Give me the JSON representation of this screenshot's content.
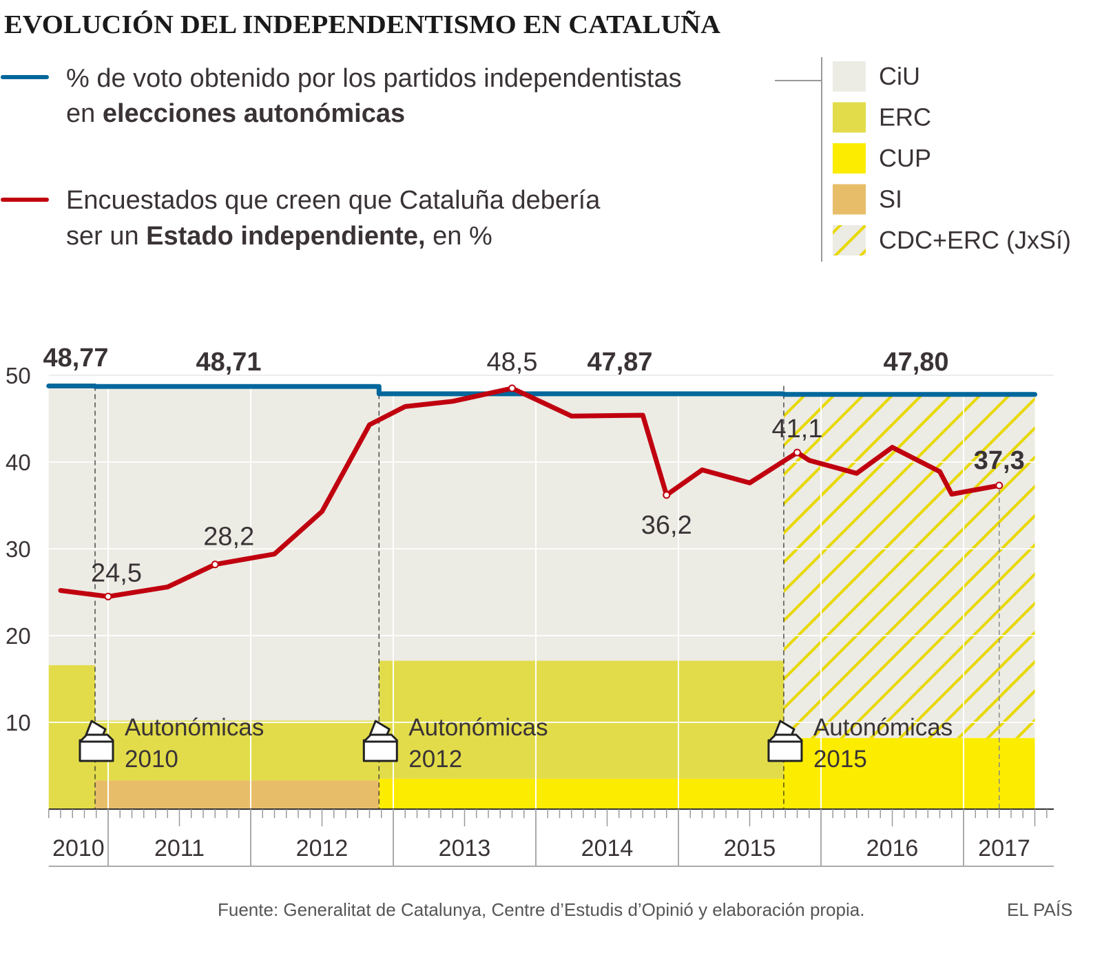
{
  "title": "EVOLUCIÓN DEL INDEPENDENTISMO EN CATALUÑA",
  "legend": {
    "blue": {
      "line1": "% de voto obtenido por los partidos independentistas",
      "line2_pre": "en ",
      "line2_bold": "elecciones autonómicas",
      "color": "#00679c"
    },
    "red": {
      "line1": "Encuestados que creen que Cataluña debería",
      "line2_pre": "ser un ",
      "line2_bold": "Estado independiente,",
      "line2_post": " en %",
      "color": "#c0000f"
    }
  },
  "parties": [
    {
      "name": "CiU",
      "color": "#ecebe4"
    },
    {
      "name": "ERC",
      "color": "#e2dc4a"
    },
    {
      "name": "CUP",
      "color": "#fcec00"
    },
    {
      "name": "SI",
      "color": "#e8bd6a"
    },
    {
      "name": "CDC+ERC (JxSí)",
      "color": "#ecebe4",
      "hatch": "#e8d800"
    }
  ],
  "chart_data": {
    "type": "line",
    "title": "EVOLUCIÓN DEL INDEPENDENTISMO EN CATALUÑA",
    "ylim": [
      0,
      50
    ],
    "yticks": [
      "10",
      "20",
      "30",
      "40",
      "50"
    ],
    "xlim": [
      "2010-08-01",
      "2017-09-01"
    ],
    "xticks": [
      "2010",
      "2011",
      "2012",
      "2013",
      "2014",
      "2015",
      "2016",
      "2017"
    ],
    "grid": true,
    "vote_periods": [
      {
        "start": "2010-08-01",
        "end": "2010-11-28",
        "total": 48.77,
        "label": "48,77",
        "stack": [
          {
            "party": "ERC",
            "value": 16.6
          },
          {
            "party": "CiU",
            "value": 32.17
          }
        ]
      },
      {
        "start": "2010-11-28",
        "end": "2012-11-25",
        "total": 48.71,
        "label": "48,71",
        "stack": [
          {
            "party": "SI",
            "value": 3.3
          },
          {
            "party": "ERC",
            "value": 6.9
          },
          {
            "party": "CiU",
            "value": 38.51
          }
        ]
      },
      {
        "start": "2012-11-25",
        "end": "2015-09-27",
        "total": 47.87,
        "label": "47,87",
        "stack": [
          {
            "party": "CUP",
            "value": 3.5
          },
          {
            "party": "ERC",
            "value": 13.6
          },
          {
            "party": "CiU",
            "value": 30.77
          }
        ]
      },
      {
        "start": "2015-09-27",
        "end": "2017-07-01",
        "total": 47.8,
        "label": "47,80",
        "stack": [
          {
            "party": "CUP",
            "value": 8.2
          },
          {
            "party": "CDC+ERC (JxSí)",
            "value": 39.6
          }
        ]
      }
    ],
    "elections": [
      {
        "date": "2010-11-28",
        "label1": "Autonómicas",
        "label2": "2010"
      },
      {
        "date": "2012-11-25",
        "label1": "Autonómicas",
        "label2": "2012"
      },
      {
        "date": "2015-09-27",
        "label1": "Autonómicas",
        "label2": "2015"
      }
    ],
    "survey": [
      {
        "date": "2010-09-01",
        "value": 25.2
      },
      {
        "date": "2011-01-01",
        "value": 24.5,
        "label": "24,5"
      },
      {
        "date": "2011-06-01",
        "value": 25.6
      },
      {
        "date": "2011-10-01",
        "value": 28.2,
        "label": "28,2"
      },
      {
        "date": "2012-03-01",
        "value": 29.4
      },
      {
        "date": "2012-07-01",
        "value": 34.3
      },
      {
        "date": "2012-11-01",
        "value": 44.3
      },
      {
        "date": "2013-02-01",
        "value": 46.4
      },
      {
        "date": "2013-06-01",
        "value": 47.0
      },
      {
        "date": "2013-11-01",
        "value": 48.5,
        "label": "48,5"
      },
      {
        "date": "2014-04-01",
        "value": 45.3
      },
      {
        "date": "2014-10-01",
        "value": 45.4
      },
      {
        "date": "2014-12-01",
        "value": 36.2,
        "label": "36,2"
      },
      {
        "date": "2015-03-01",
        "value": 39.1
      },
      {
        "date": "2015-07-01",
        "value": 37.6
      },
      {
        "date": "2015-11-01",
        "value": 41.1,
        "label": "41,1"
      },
      {
        "date": "2015-12-01",
        "value": 40.2
      },
      {
        "date": "2016-04-01",
        "value": 38.7
      },
      {
        "date": "2016-07-01",
        "value": 41.7
      },
      {
        "date": "2016-11-01",
        "value": 38.9
      },
      {
        "date": "2016-12-01",
        "value": 36.3
      },
      {
        "date": "2017-04-01",
        "value": 37.3,
        "label": "37,3",
        "bold": true
      }
    ]
  },
  "footer": {
    "source": "Fuente: Generalitat de Catalunya, Centre d’Estudis d’Opinió y elaboración propia.",
    "brand": "EL PAÍS"
  }
}
